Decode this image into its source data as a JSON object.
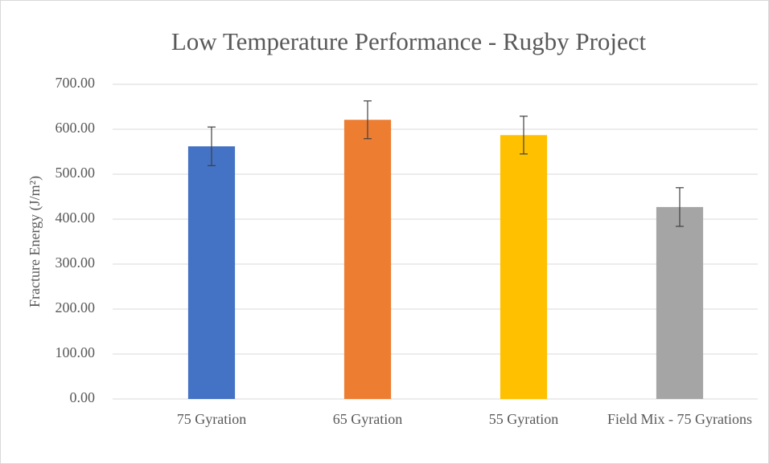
{
  "chart_data": {
    "type": "bar",
    "title": "Low Temperature Performance - Rugby Project",
    "y_label": "Fracture Energy (J/m²)",
    "categories": [
      "75 Gyration",
      "65 Gyration",
      "55 Gyration",
      "Field Mix - 75 Gyrations"
    ],
    "values": [
      562,
      621,
      587,
      427
    ],
    "errors": [
      43,
      42,
      42,
      43
    ],
    "colors": [
      "#4472c4",
      "#ed7d31",
      "#ffc000",
      "#a5a5a5"
    ],
    "ylim": [
      0,
      700
    ],
    "yticks": [
      {
        "value": 0,
        "label": "0.00"
      },
      {
        "value": 100,
        "label": "100.00"
      },
      {
        "value": 200,
        "label": "200.00"
      },
      {
        "value": 300,
        "label": "300.00"
      },
      {
        "value": 400,
        "label": "400.00"
      },
      {
        "value": 500,
        "label": "500.00"
      },
      {
        "value": 600,
        "label": "600.00"
      },
      {
        "value": 700,
        "label": "700.00"
      }
    ],
    "grid": true
  }
}
